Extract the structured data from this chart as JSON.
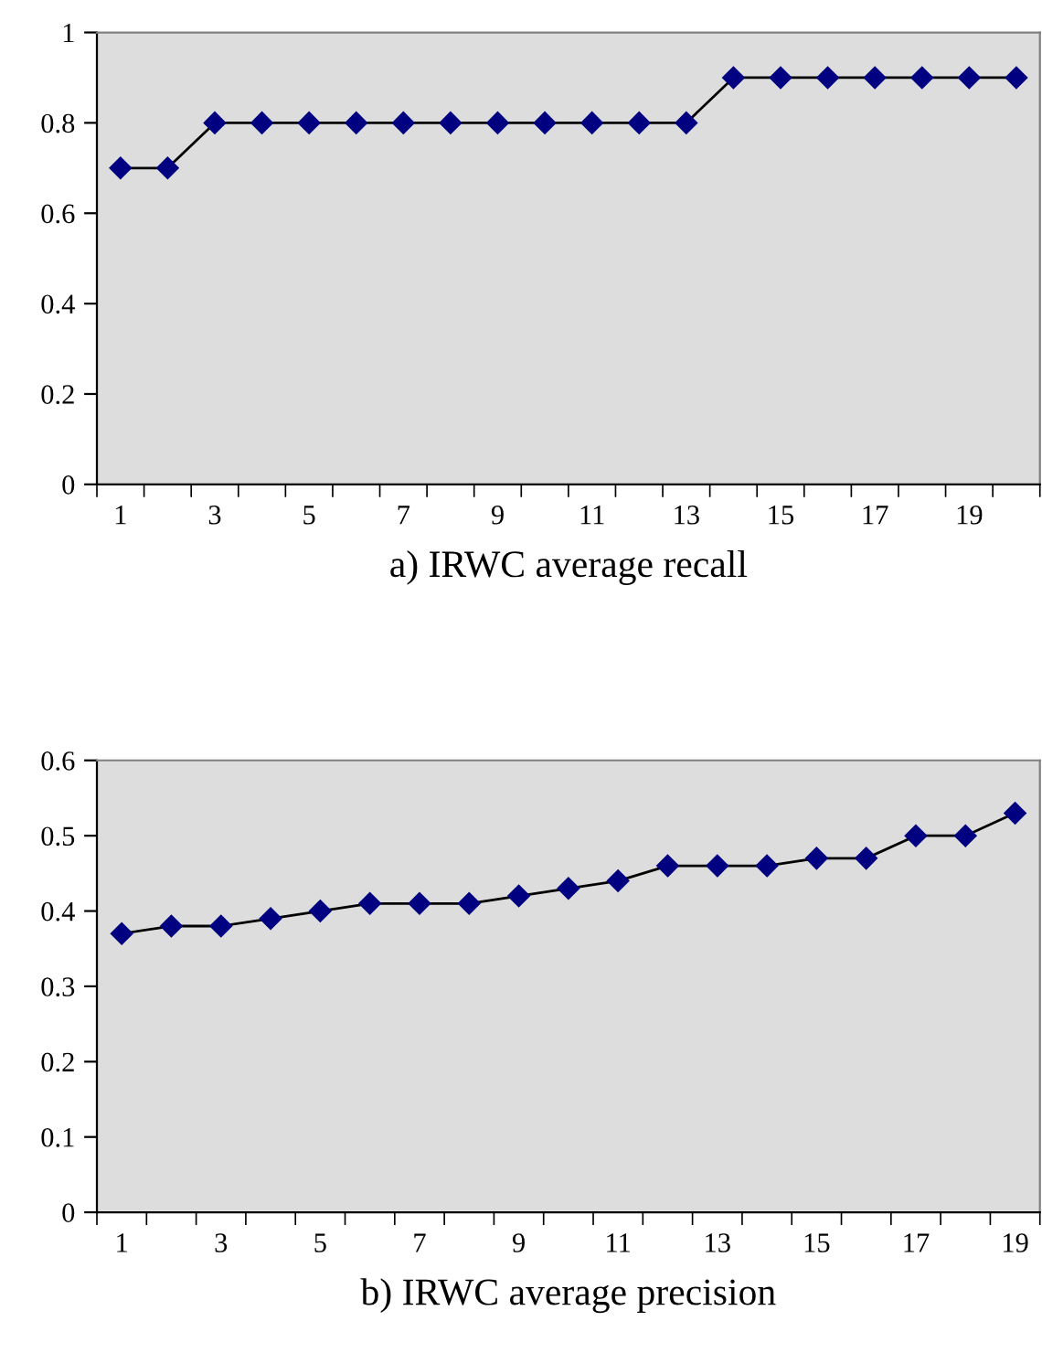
{
  "chart_data": [
    {
      "type": "line",
      "title": "a) IRWC average recall",
      "categories": [
        "1",
        null,
        "3",
        null,
        "5",
        null,
        "7",
        null,
        "9",
        null,
        "11",
        null,
        "13",
        null,
        "15",
        null,
        "17",
        null,
        "19",
        null
      ],
      "series": [
        {
          "color": "#000080",
          "values": [
            0.7,
            0.7,
            0.8,
            0.8,
            0.8,
            0.8,
            0.8,
            0.8,
            0.8,
            0.8,
            0.8,
            0.8,
            0.8,
            0.9,
            0.9,
            0.9,
            0.9,
            0.9,
            0.9,
            0.9
          ]
        }
      ],
      "ylim": [
        0,
        1
      ],
      "yticks": [
        0,
        0.2,
        0.4,
        0.6,
        0.8,
        1
      ],
      "marker": "diamond",
      "grid": false,
      "legend": false
    },
    {
      "type": "line",
      "title": "b) IRWC average precision",
      "categories": [
        "1",
        null,
        "3",
        null,
        "5",
        null,
        "7",
        null,
        "9",
        null,
        "11",
        null,
        "13",
        null,
        "15",
        null,
        "17",
        null,
        "19"
      ],
      "series": [
        {
          "color": "#000080",
          "values": [
            0.37,
            0.38,
            0.38,
            0.39,
            0.4,
            0.41,
            0.41,
            0.41,
            0.42,
            0.43,
            0.44,
            0.46,
            0.46,
            0.46,
            0.47,
            0.47,
            0.5,
            0.5,
            0.53
          ]
        }
      ],
      "ylim": [
        0,
        0.6
      ],
      "yticks": [
        0,
        0.1,
        0.2,
        0.3,
        0.4,
        0.5,
        0.6
      ],
      "marker": "diamond",
      "grid": false,
      "legend": false
    }
  ]
}
